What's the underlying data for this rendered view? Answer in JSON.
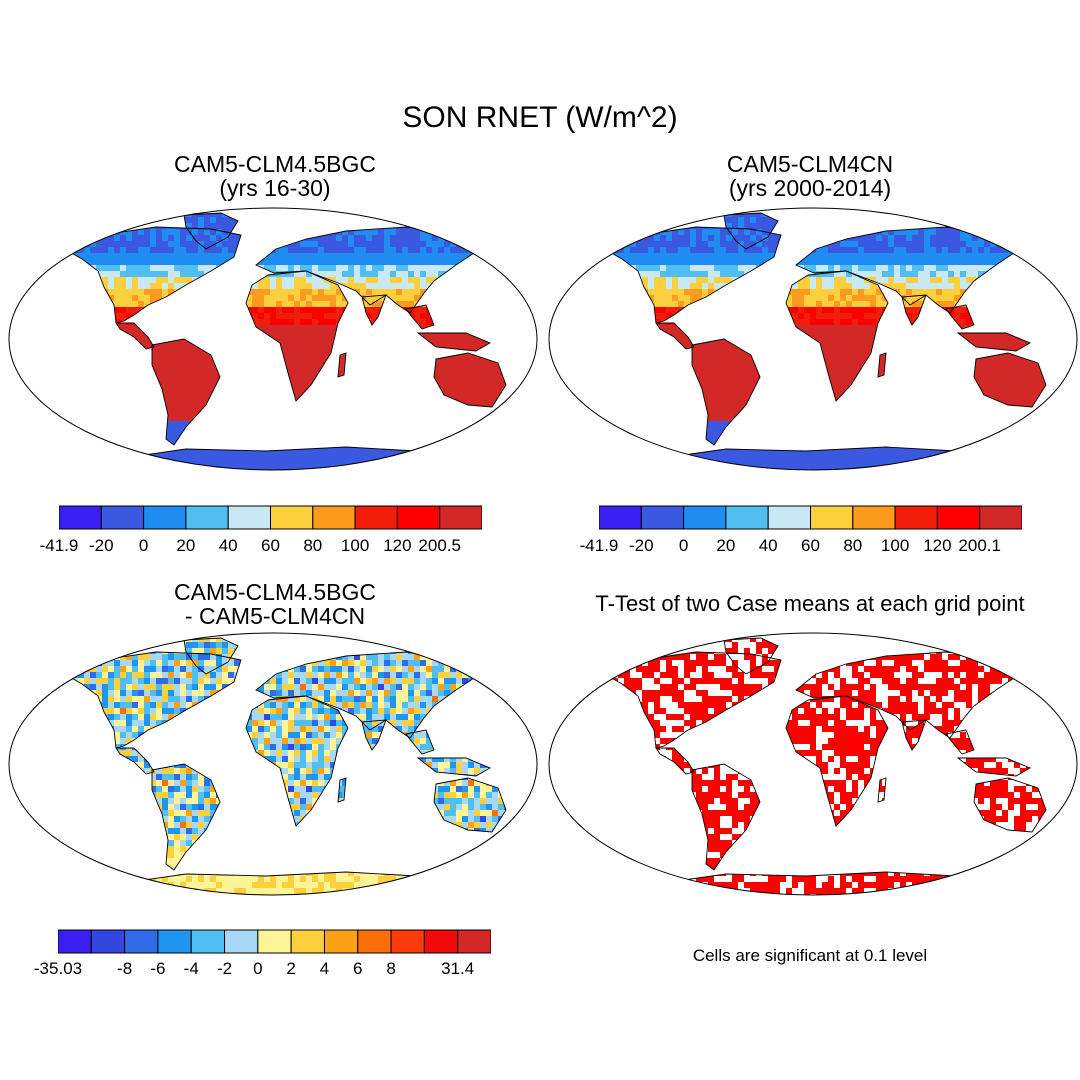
{
  "title": "SON RNET (W/m^2)",
  "panels": {
    "p1": {
      "title_line1": "CAM5-CLM4.5BGC",
      "title_line2": "(yrs 16-30)"
    },
    "p2": {
      "title_line1": "CAM5-CLM4CN",
      "title_line2": "(yrs 2000-2014)"
    },
    "p3": {
      "title_line1": "CAM5-CLM4.5BGC",
      "title_line2": "- CAM5-CLM4CN"
    },
    "p4": {
      "title_line1": "T-Test of two Case means at each grid point"
    }
  },
  "colorbars": {
    "abs": {
      "colors": [
        "#3a1ff0",
        "#3a58e0",
        "#1e8cf0",
        "#50bef0",
        "#c8e8f4",
        "#fcd03c",
        "#fc9b1e",
        "#f01e0a",
        "#fc0000",
        "#d22828"
      ],
      "labels1": [
        "-41.9",
        "-20",
        "0",
        "20",
        "40",
        "60",
        "80",
        "100",
        "120",
        "200.5"
      ],
      "labels2": [
        "-41.9",
        "-20",
        "0",
        "20",
        "40",
        "60",
        "80",
        "100",
        "120",
        "200.1"
      ]
    },
    "diff": {
      "colors": [
        "#3a1ff0",
        "#3346e0",
        "#2e6ce8",
        "#1e96f0",
        "#50bef0",
        "#a8d8f4",
        "#fcf496",
        "#fcd03c",
        "#fca014",
        "#fc6e0a",
        "#fc3a0a",
        "#f00a0a",
        "#d22828"
      ],
      "labels": [
        "-35.03",
        "-8",
        "-6",
        "-4",
        "-2",
        "0",
        "2",
        "4",
        "6",
        "8",
        "31.4"
      ]
    }
  },
  "significance_note": "Cells are significant at 0.1 level",
  "colors": {
    "significant": "#ff0000",
    "coast": "#000000"
  }
}
